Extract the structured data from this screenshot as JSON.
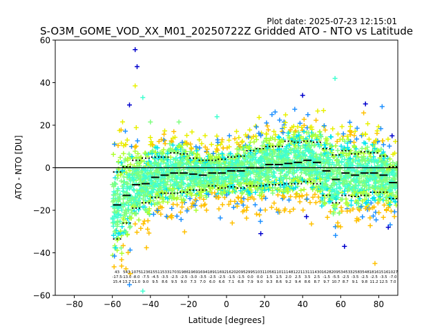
{
  "figure": {
    "plot_date": "Plot date: 2025-07-23 12:15:01"
  },
  "chart_data": {
    "type": "scatter",
    "title": "S-O3M_GOME_VOD_XX_M01_20250722Z Gridded ATO - NTO vs Latitude",
    "xlabel": "Latitude [degrees]",
    "ylabel": "ATO - NTO [DU]",
    "xlim": [
      -90,
      90
    ],
    "ylim": [
      -60,
      60
    ],
    "xticks": [
      -80,
      -60,
      -40,
      -20,
      0,
      20,
      40,
      60,
      80
    ],
    "yticks": [
      -60,
      -40,
      -20,
      0,
      20,
      40,
      60
    ],
    "grid": false,
    "zero_line": 0,
    "marker": "+",
    "point_colors": [
      "#0000cd",
      "#1e90ff",
      "#00e5ee",
      "#40ffd0",
      "#7fff7f",
      "#adff2f",
      "#e8f000",
      "#ffc000"
    ],
    "zone_width": 5,
    "zones": [
      {
        "lat": -57.5,
        "mean": -17.5,
        "std_low": -33.5,
        "std_high": -2.0,
        "count": "43",
        "mean_label": "-17.5",
        "std_label": "15.4"
      },
      {
        "lat": -52.5,
        "mean": -13.0,
        "std_low": -26.0,
        "std_high": 0.5,
        "count": "543",
        "mean_label": "-13.0",
        "std_label": "13.7"
      },
      {
        "lat": -47.5,
        "mean": -8.0,
        "std_low": -19.0,
        "std_high": 3.5,
        "count": "1075",
        "mean_label": "-8.0",
        "std_label": "11.0"
      },
      {
        "lat": -42.5,
        "mean": -7.5,
        "std_low": -16.5,
        "std_high": 4.5,
        "count": "1236",
        "mean_label": "-7.5",
        "std_label": "9.0"
      },
      {
        "lat": -37.5,
        "mean": -4.5,
        "std_low": -14.0,
        "std_high": 5.0,
        "count": "1551",
        "mean_label": "-4.5",
        "std_label": "9.5"
      },
      {
        "lat": -32.5,
        "mean": -3.5,
        "std_low": -12.0,
        "std_high": 5.0,
        "count": "1533",
        "mean_label": "-3.5",
        "std_label": "8.6"
      },
      {
        "lat": -27.5,
        "mean": -2.5,
        "std_low": -12.0,
        "std_high": 7.0,
        "count": "1703",
        "mean_label": "-2.5",
        "std_label": "9.5"
      },
      {
        "lat": -22.5,
        "mean": -2.5,
        "std_low": -11.5,
        "std_high": 6.5,
        "count": "1986",
        "mean_label": "-2.5",
        "std_label": "9.0"
      },
      {
        "lat": -17.5,
        "mean": -3.0,
        "std_low": -10.5,
        "std_high": 4.5,
        "count": "1969",
        "mean_label": "-3.0",
        "std_label": "7.3"
      },
      {
        "lat": -12.5,
        "mean": -3.5,
        "std_low": -10.5,
        "std_high": 3.5,
        "count": "1694",
        "mean_label": "-3.5",
        "std_label": "7.0"
      },
      {
        "lat": -7.5,
        "mean": -2.5,
        "std_low": -8.5,
        "std_high": 3.5,
        "count": "1891",
        "mean_label": "-2.5",
        "std_label": "6.0"
      },
      {
        "lat": -2.5,
        "mean": -2.5,
        "std_low": -9.5,
        "std_high": 4.0,
        "count": "1692",
        "mean_label": "-2.5",
        "std_label": "6.6"
      },
      {
        "lat": 2.5,
        "mean": -1.5,
        "std_low": -9.0,
        "std_high": 5.0,
        "count": "1620",
        "mean_label": "-1.5",
        "std_label": "7.1"
      },
      {
        "lat": 7.5,
        "mean": -1.5,
        "std_low": -9.5,
        "std_high": 5.5,
        "count": "2095",
        "mean_label": "-1.5",
        "std_label": "6.8"
      },
      {
        "lat": 12.5,
        "mean": 0.0,
        "std_low": -8.5,
        "std_high": 8.0,
        "count": "2995",
        "mean_label": "0.0",
        "std_label": "7.9"
      },
      {
        "lat": 17.5,
        "mean": 0.0,
        "std_low": -8.5,
        "std_high": 9.0,
        "count": "1031",
        "mean_label": "0.0",
        "std_label": "9.0"
      },
      {
        "lat": 22.5,
        "mean": 1.5,
        "std_low": -8.0,
        "std_high": 10.0,
        "count": "1056",
        "mean_label": "1.5",
        "std_label": "9.3"
      },
      {
        "lat": 27.5,
        "mean": 1.5,
        "std_low": -8.0,
        "std_high": 10.0,
        "count": "1101",
        "mean_label": "1.5",
        "std_label": "8.6"
      },
      {
        "lat": 32.5,
        "mean": 2.0,
        "std_low": -7.5,
        "std_high": 12.5,
        "count": "1148",
        "mean_label": "2.0",
        "std_label": "9.2"
      },
      {
        "lat": 37.5,
        "mean": 2.5,
        "std_low": -7.5,
        "std_high": 12.0,
        "count": "1221",
        "mean_label": "2.5",
        "std_label": "9.4"
      },
      {
        "lat": 42.5,
        "mean": 3.5,
        "std_low": -6.5,
        "std_high": 12.5,
        "count": "1311",
        "mean_label": "3.5",
        "std_label": "8.6"
      },
      {
        "lat": 47.5,
        "mean": 2.5,
        "std_low": -7.5,
        "std_high": 12.0,
        "count": "1430",
        "mean_label": "2.5",
        "std_label": "8.7"
      },
      {
        "lat": 52.5,
        "mean": -1.5,
        "std_low": -13.0,
        "std_high": 9.0,
        "count": "1628",
        "mean_label": "-1.5",
        "std_label": "9.7"
      },
      {
        "lat": 57.5,
        "mean": -5.5,
        "std_low": -16.5,
        "std_high": 6.0,
        "count": "2095",
        "mean_label": "-5.5",
        "std_label": "10.7"
      },
      {
        "lat": 62.5,
        "mean": -2.5,
        "std_low": -13.0,
        "std_high": 8.0,
        "count": "3453",
        "mean_label": "-2.5",
        "std_label": "8.7"
      },
      {
        "lat": 67.5,
        "mean": -3.5,
        "std_low": -13.5,
        "std_high": 6.5,
        "count": "3258",
        "mean_label": "-3.5",
        "std_label": "9.1"
      },
      {
        "lat": 72.5,
        "mean": -2.5,
        "std_low": -13.0,
        "std_high": 7.5,
        "count": "3548",
        "mean_label": "-2.5",
        "std_label": "9.8"
      },
      {
        "lat": 77.5,
        "mean": -2.5,
        "std_low": -11.5,
        "std_high": 7.0,
        "count": "1816",
        "mean_label": "-2.5",
        "std_label": "11.2"
      },
      {
        "lat": 82.5,
        "mean": -3.5,
        "std_low": -11.5,
        "std_high": 5.5,
        "count": "1516",
        "mean_label": "-3.5",
        "std_label": "12.5"
      },
      {
        "lat": 87.5,
        "mean": -7.0,
        "std_low": -14.5,
        "std_high": 0.5,
        "count": "1027",
        "mean_label": "-7.0",
        "std_label": "7.0"
      }
    ],
    "outliers": [
      {
        "lat": -48,
        "value": 55.5,
        "color": "#0000cd"
      },
      {
        "lat": -47,
        "value": 47.5,
        "color": "#0000cd"
      },
      {
        "lat": -51,
        "value": 29.5,
        "color": "#0000cd"
      },
      {
        "lat": -48,
        "value": 38.5,
        "color": "#e8f000"
      },
      {
        "lat": -44,
        "value": 33.0,
        "color": "#40ffd0"
      },
      {
        "lat": 57,
        "value": 42.0,
        "color": "#40ffd0"
      },
      {
        "lat": 40,
        "value": 34.0,
        "color": "#0000cd"
      },
      {
        "lat": 73,
        "value": 30.0,
        "color": "#0000cd"
      },
      {
        "lat": 87,
        "value": 15.0,
        "color": "#0000cd"
      },
      {
        "lat": -5,
        "value": 24.0,
        "color": "#40ffd0"
      },
      {
        "lat": -25,
        "value": 21.5,
        "color": "#7fff7f"
      },
      {
        "lat": -40,
        "value": 21.5,
        "color": "#7fff7f"
      },
      {
        "lat": 18,
        "value": -31.0,
        "color": "#0000cd"
      },
      {
        "lat": 42,
        "value": -23.0,
        "color": "#0000cd"
      },
      {
        "lat": 62,
        "value": -37.0,
        "color": "#0000cd"
      },
      {
        "lat": 85,
        "value": -28.0,
        "color": "#0000cd"
      },
      {
        "lat": 78,
        "value": -45.0,
        "color": "#ffc000"
      },
      {
        "lat": -44,
        "value": -58.0,
        "color": "#40ffd0"
      },
      {
        "lat": -51,
        "value": -55.0,
        "color": "#1e90ff"
      },
      {
        "lat": 3,
        "value": -26.0,
        "color": "#ffc000"
      },
      {
        "lat": -16,
        "value": -20.0,
        "color": "#adff2f"
      }
    ]
  }
}
